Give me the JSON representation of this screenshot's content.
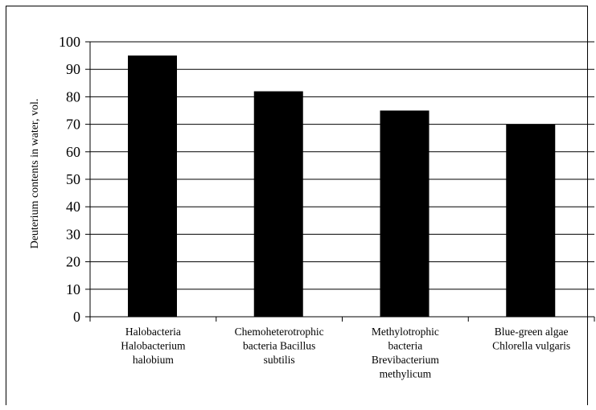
{
  "chart_data": {
    "type": "bar",
    "title": "",
    "xlabel": "",
    "ylabel": "Deuterium contents in water, vol.",
    "ylim": [
      0,
      100
    ],
    "ytick_step": 10,
    "yticks": [
      "0",
      "10",
      "20",
      "30",
      "40",
      "50",
      "60",
      "70",
      "80",
      "90",
      "100"
    ],
    "grid": true,
    "legend": "none",
    "categories": [
      [
        "Halobacteria",
        "Halobacterium",
        "halobium"
      ],
      [
        "Chemoheterotrophic",
        "bacteria Bacillus",
        "subtilis"
      ],
      [
        "Methylotrophic",
        "bacteria",
        "Brevibacterium",
        "methylicum"
      ],
      [
        "Blue-green algae",
        "Chlorella vulgaris"
      ]
    ],
    "values": [
      95,
      82,
      75,
      70
    ],
    "bar_color": "#000000"
  }
}
